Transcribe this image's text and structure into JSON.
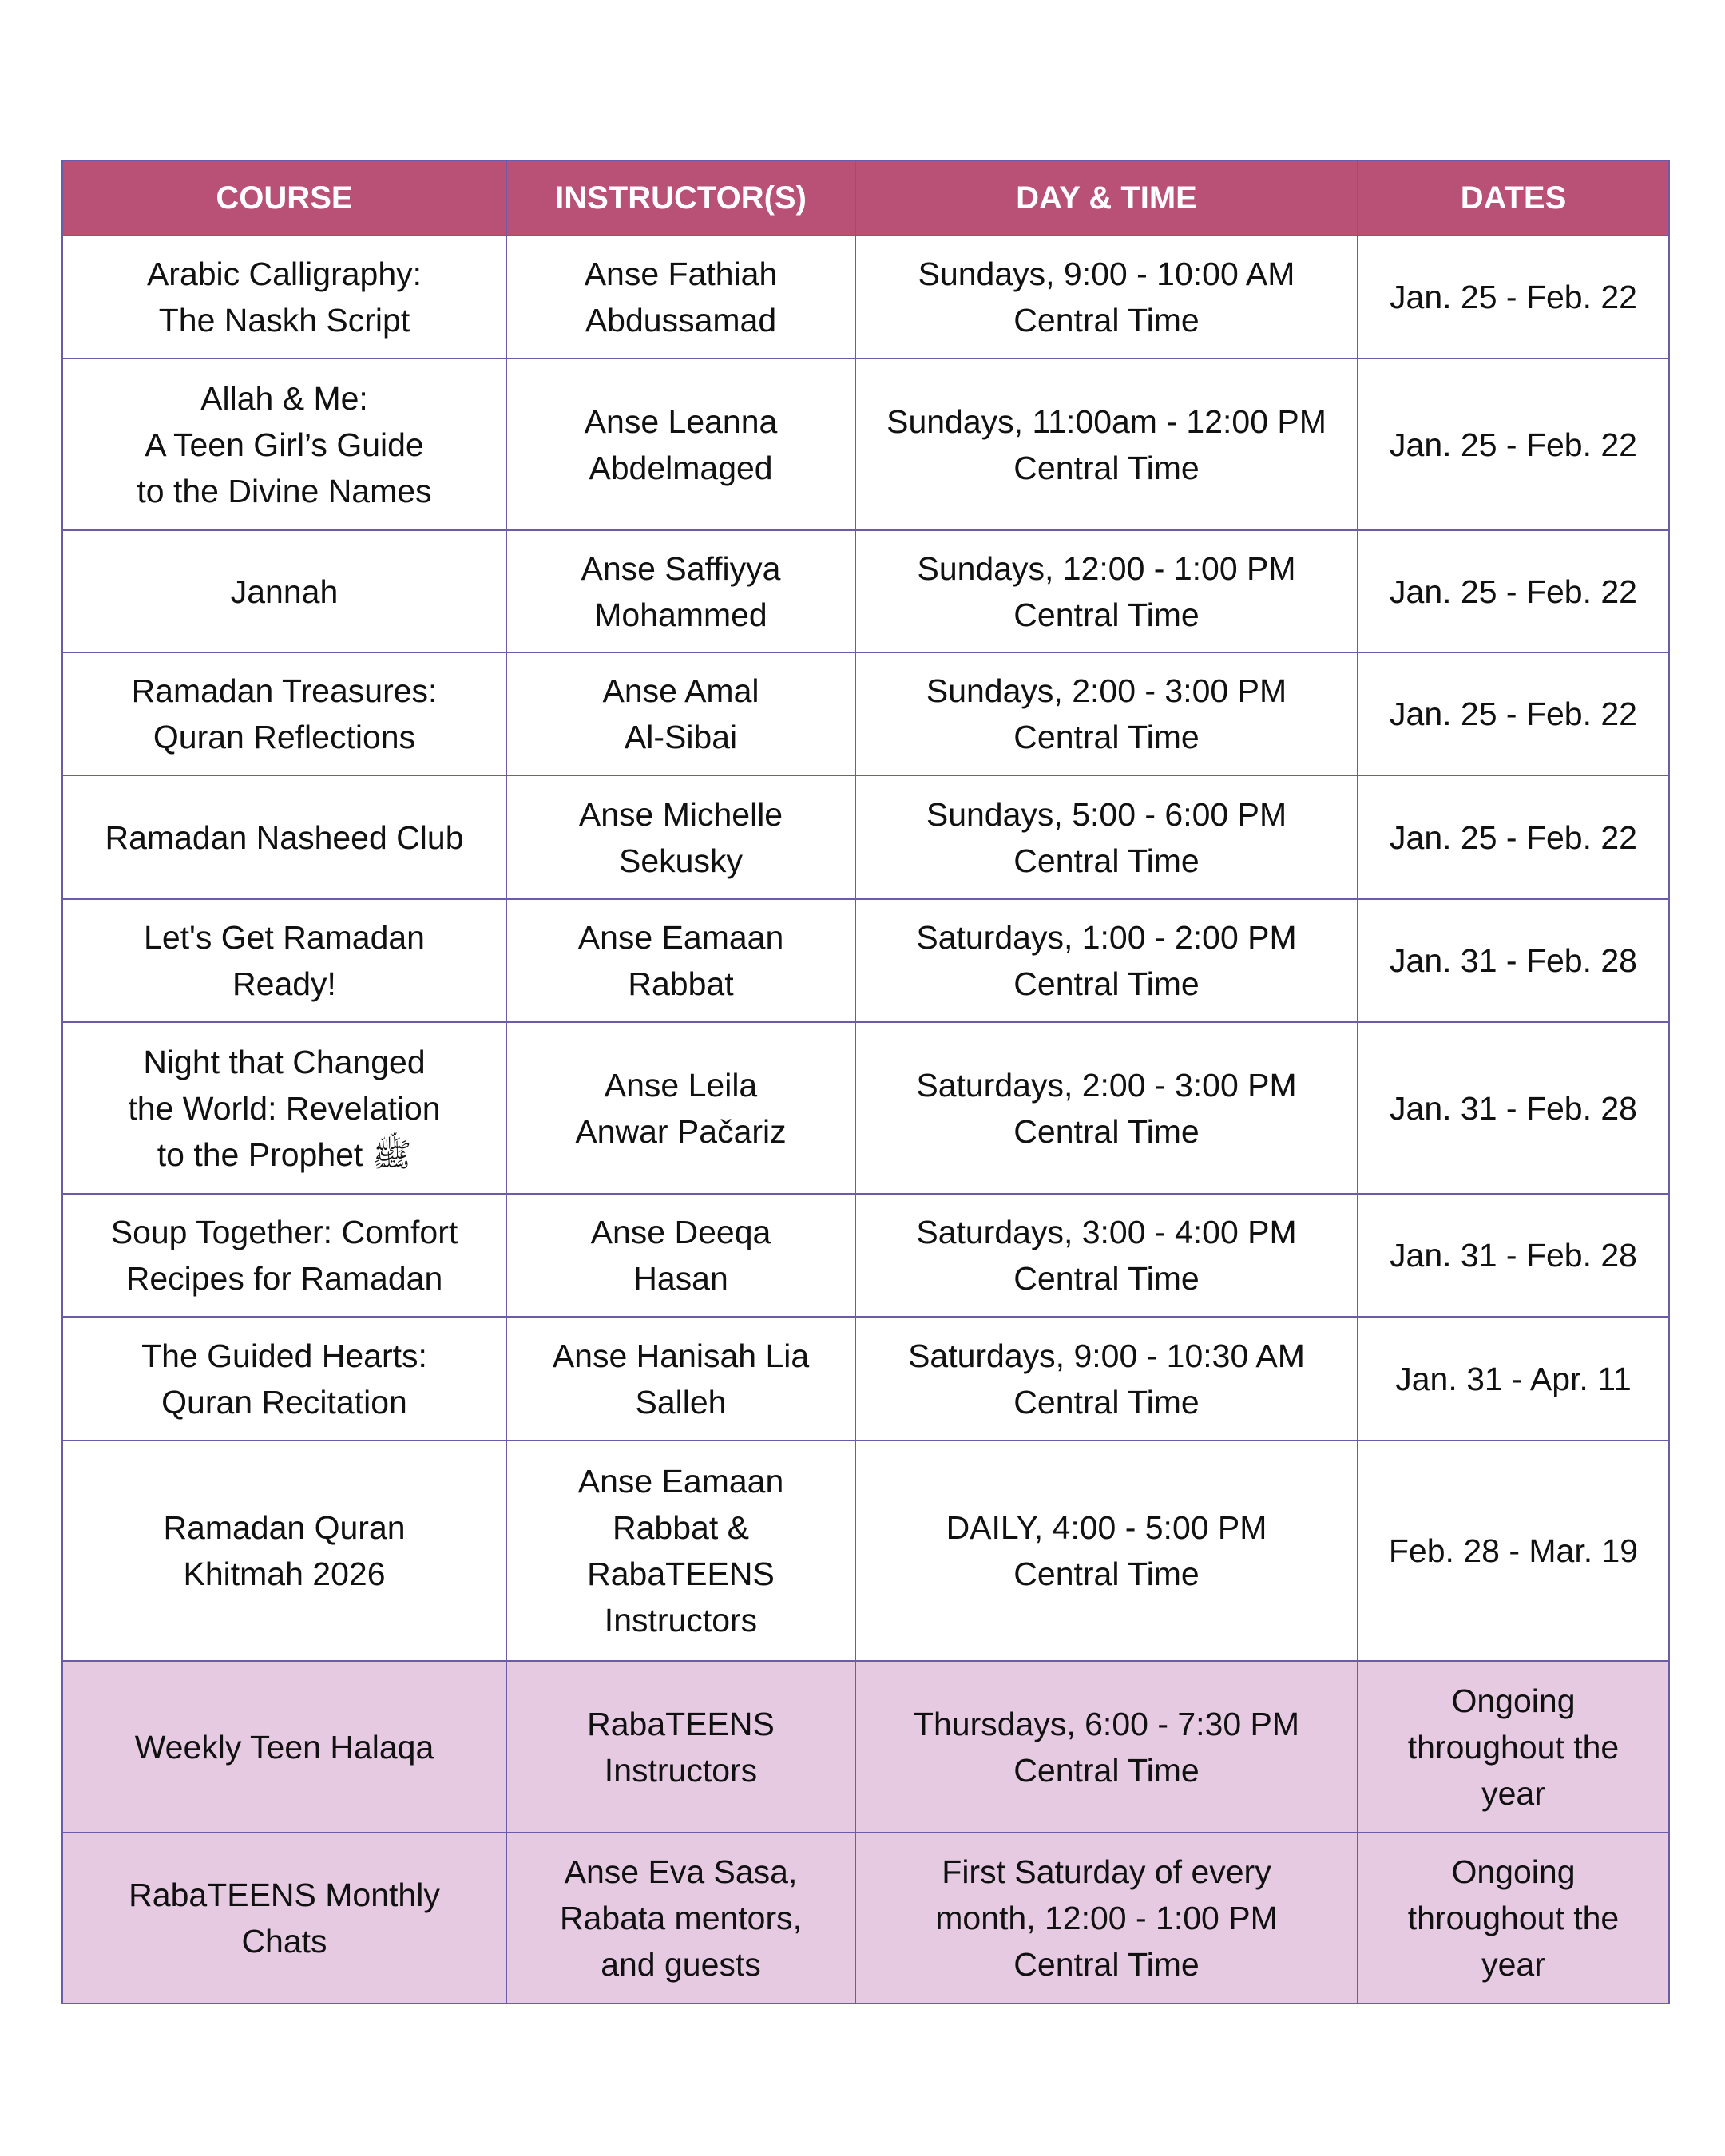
{
  "headers": [
    "COURSE",
    "INSTRUCTOR(S)",
    "DAY & TIME",
    "DATES"
  ],
  "colors": {
    "header_bg": "#B95075",
    "highlight_row_bg": "#E5CAE2",
    "border": "#6B5BA8"
  },
  "rows": [
    {
      "course": "Arabic Calligraphy:\nThe Naskh Script",
      "instructor": "Anse Fathiah\nAbdussamad",
      "time": "Sundays, 9:00 - 10:00 AM\nCentral Time",
      "dates": "Jan. 25 - Feb. 22"
    },
    {
      "course": "Allah & Me:\nA Teen Girl’s Guide\nto the Divine Names",
      "instructor": "Anse Leanna\nAbdelmaged",
      "time": "Sundays, 11:00am - 12:00 PM\nCentral Time",
      "dates": "Jan. 25 - Feb. 22"
    },
    {
      "course": "Jannah",
      "instructor": "Anse Saffiyya\nMohammed",
      "time": "Sundays, 12:00 - 1:00 PM\nCentral Time",
      "dates": "Jan. 25 - Feb. 22"
    },
    {
      "course": "Ramadan Treasures:\nQuran Reflections",
      "instructor": "Anse Amal\nAl-Sibai",
      "time": "Sundays, 2:00 - 3:00 PM\nCentral Time",
      "dates": "Jan. 25 - Feb. 22"
    },
    {
      "course": "Ramadan Nasheed Club",
      "instructor": "Anse Michelle\nSekusky",
      "time": "Sundays, 5:00 - 6:00 PM\nCentral Time",
      "dates": "Jan. 25 - Feb. 22"
    },
    {
      "course": "Let's Get Ramadan\nReady!",
      "instructor": "Anse Eamaan\nRabbat",
      "time": "Saturdays, 1:00 - 2:00 PM\nCentral Time",
      "dates": "Jan. 31 - Feb. 28"
    },
    {
      "course": "Night that Changed\nthe World: Revelation\nto the Prophet ﷺ",
      "instructor": "Anse Leila\nAnwar Pačariz",
      "time": "Saturdays, 2:00 - 3:00 PM\nCentral Time",
      "dates": "Jan. 31 - Feb. 28"
    },
    {
      "course": "Soup Together: Comfort\nRecipes for Ramadan",
      "instructor": "Anse Deeqa\nHasan",
      "time": "Saturdays, 3:00 - 4:00 PM\nCentral Time",
      "dates": "Jan. 31 - Feb. 28"
    },
    {
      "course": "The Guided Hearts:\nQuran Recitation",
      "instructor": "Anse Hanisah Lia\nSalleh",
      "time": "Saturdays, 9:00 - 10:30 AM\nCentral Time",
      "dates": "Jan. 31 - Apr. 11"
    },
    {
      "course": "Ramadan Quran\nKhitmah 2026",
      "instructor": "Anse Eamaan\nRabbat &\nRabaTEENS\nInstructors",
      "time": "DAILY, 4:00 - 5:00 PM\nCentral Time",
      "dates": "Feb. 28 -  Mar. 19"
    },
    {
      "course": "Weekly Teen Halaqa",
      "instructor": "RabaTEENS\nInstructors",
      "time": "Thursdays, 6:00 - 7:30 PM\nCentral Time",
      "dates": "Ongoing\nthroughout the\nyear",
      "highlight": true
    },
    {
      "course": "RabaTEENS Monthly\nChats",
      "instructor": "Anse Eva Sasa,\nRabata mentors,\nand guests",
      "time": "First Saturday of every\nmonth, 12:00 - 1:00 PM\nCentral Time",
      "dates": "Ongoing\nthroughout the\nyear",
      "highlight": true
    }
  ]
}
